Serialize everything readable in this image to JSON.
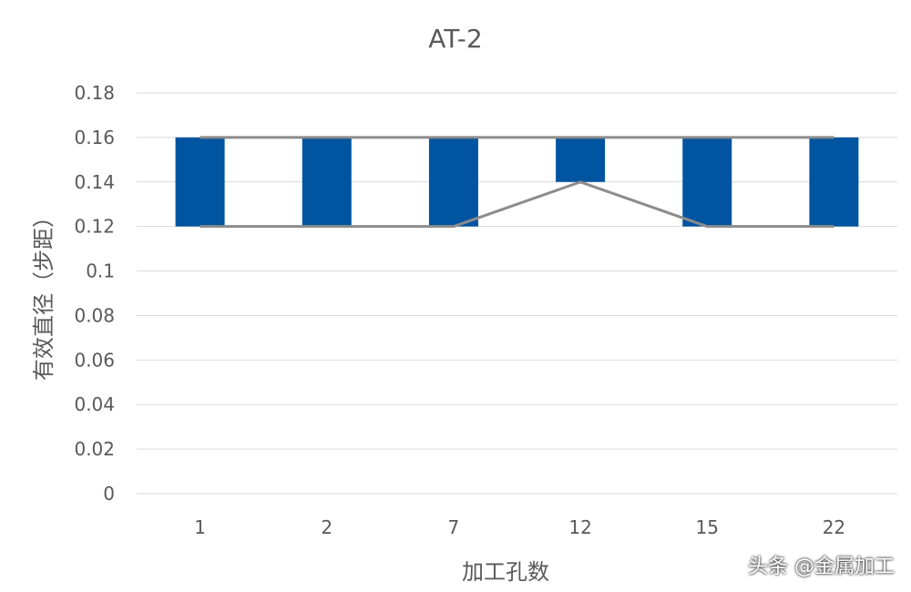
{
  "chart_data": {
    "type": "bar",
    "title": "AT-2",
    "xlabel": "加工孔数",
    "ylabel": "有效直径（步距）",
    "categories": [
      "1",
      "2",
      "7",
      "12",
      "15",
      "22"
    ],
    "ylim": [
      0,
      0.18
    ],
    "yticks": [
      "0",
      "0.02",
      "0.04",
      "0.06",
      "0.08",
      "0.1",
      "0.12",
      "0.14",
      "0.16",
      "0.18"
    ],
    "grid": true,
    "bars": {
      "low": [
        0.12,
        0.12,
        0.12,
        0.14,
        0.12,
        0.12
      ],
      "high": [
        0.16,
        0.16,
        0.16,
        0.16,
        0.16,
        0.16
      ],
      "color": "#0054A0"
    },
    "series": [
      {
        "values": [
          0.16,
          0.16,
          0.16,
          0.16,
          0.16,
          0.16
        ],
        "color": "#8C8C8C"
      },
      {
        "values": [
          0.12,
          0.12,
          0.12,
          0.14,
          0.12,
          0.12
        ],
        "color": "#8C8C8C"
      }
    ]
  },
  "watermark": "头条 @金属加工"
}
